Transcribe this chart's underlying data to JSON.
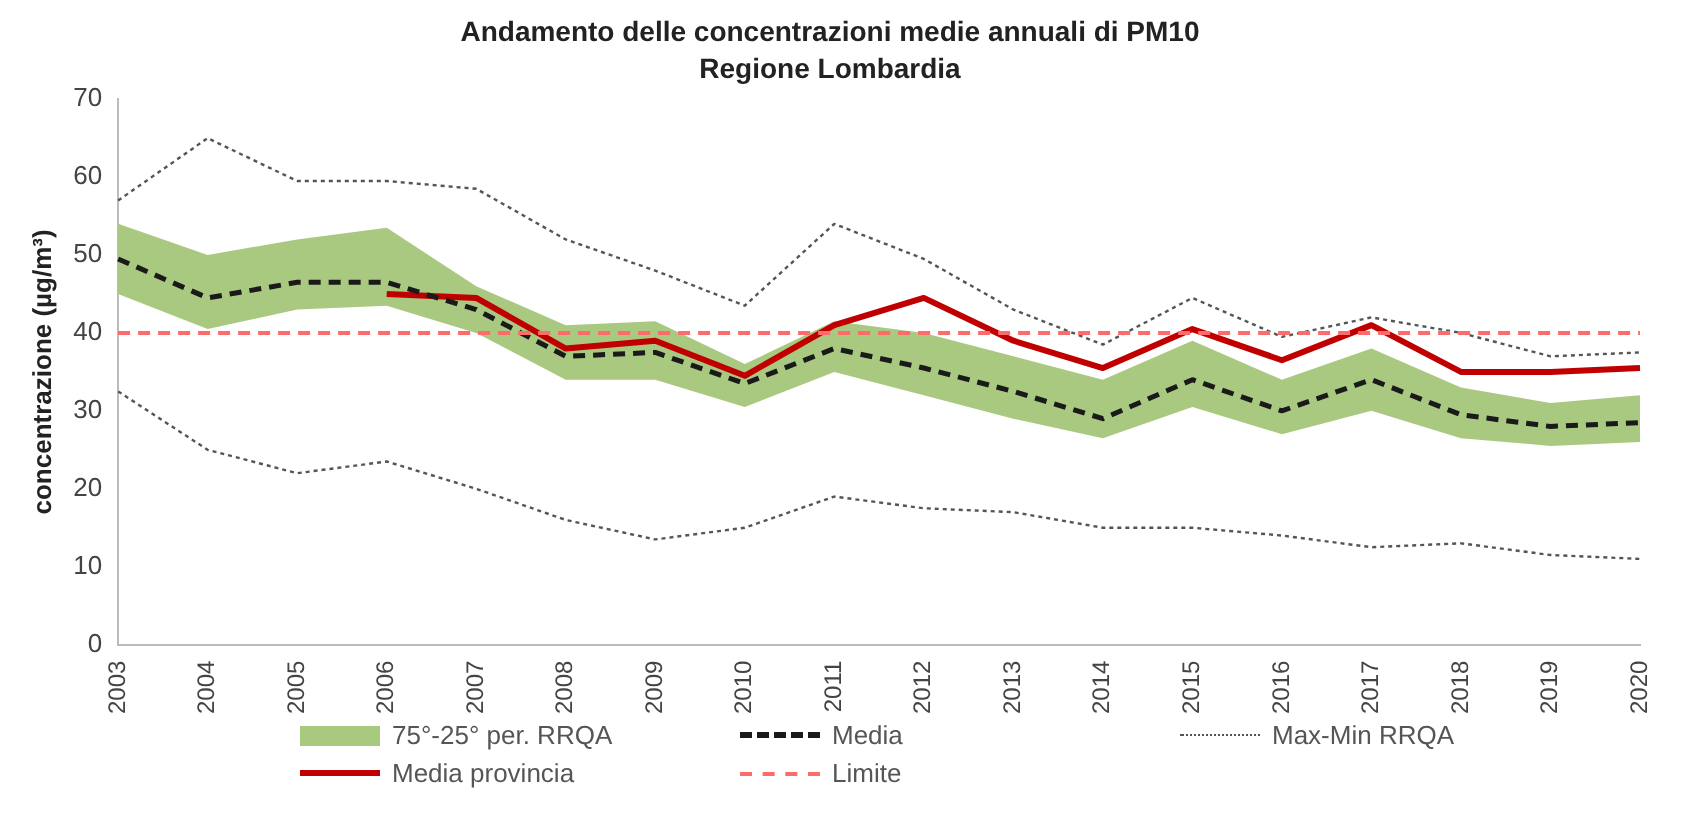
{
  "chart_data": {
    "type": "line",
    "title": "Andamento delle concentrazioni medie annuali di PM10",
    "subtitle": "Regione Lombardia",
    "ylabel": "concentrazione (µg/m³)",
    "categories": [
      "2003",
      "2004",
      "2005",
      "2006",
      "2007",
      "2008",
      "2009",
      "2010",
      "2011",
      "2012",
      "2013",
      "2014",
      "2015",
      "2016",
      "2017",
      "2018",
      "2019",
      "2020"
    ],
    "ylim": [
      0,
      70
    ],
    "yticks": [
      0,
      10,
      20,
      30,
      40,
      50,
      60,
      70
    ],
    "grid": false,
    "legend": "bottom",
    "marker": "none",
    "series": [
      {
        "name": "Media",
        "color": "#1a1a1a",
        "line_style": "dashed",
        "values": [
          49.5,
          44.5,
          46.5,
          46.5,
          43,
          37,
          37.5,
          33.5,
          38,
          35.5,
          32.5,
          29,
          34,
          30,
          34,
          29.5,
          28,
          28.5
        ],
        "lower": [
          45,
          40.5,
          43,
          43.5,
          40,
          34,
          34,
          30.5,
          35,
          32,
          29,
          26.5,
          30.5,
          27,
          30,
          26.5,
          25.5,
          26
        ],
        "upper": [
          54,
          50,
          52,
          53.5,
          46,
          41,
          41.5,
          36,
          41.5,
          40,
          37,
          34,
          39,
          34,
          38,
          33,
          31,
          32
        ]
      },
      {
        "name": "Max-Min RRQA",
        "color": "#555555",
        "line_style": "dotted",
        "values": [
          57,
          65,
          59.5,
          59.5,
          58.5,
          52,
          48,
          43.5,
          54,
          49.5,
          43,
          38.5,
          44.5,
          39.5,
          42,
          40,
          37,
          37.5
        ]
      },
      {
        "name": "Media provincia",
        "color": "#c00000",
        "line_style": "solid",
        "values": [
          null,
          null,
          null,
          45,
          44.5,
          38,
          39,
          34.5,
          41,
          44.5,
          39,
          35.5,
          40.5,
          36.5,
          41,
          35,
          35,
          35.5
        ]
      },
      {
        "color": "#555555",
        "line_style": "dotted",
        "values": [
          32.5,
          25,
          22,
          23.5,
          20,
          16,
          13.5,
          15,
          19,
          17.5,
          17,
          15,
          15,
          14,
          12.5,
          13,
          11.5,
          11
        ]
      }
    ],
    "annotations": [
      "75°-25° per. RRQA"
    ],
    "ref_lines": [
      {
        "axis": "y",
        "value": 40,
        "label": "Limite",
        "color": "#ff6b6b",
        "line_style": "dashed"
      }
    ]
  }
}
